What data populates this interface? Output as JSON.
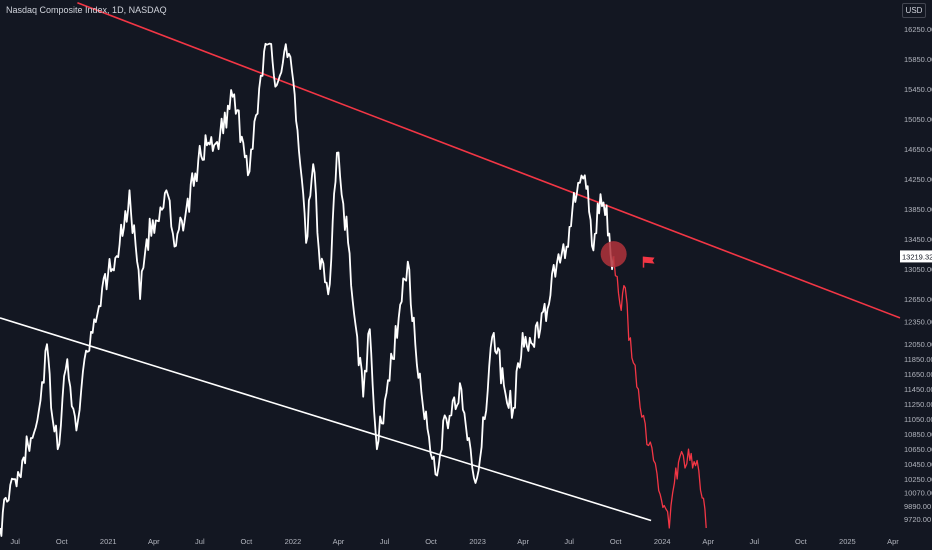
{
  "header": {
    "title": "Nasdaq Composite Index, 1D, NASDAQ",
    "currency": "USD"
  },
  "colors": {
    "background": "#131722",
    "price_line": "#ffffff",
    "projection": "#f23645",
    "upper_trendline": "#f23645",
    "lower_trendline": "#ffffff",
    "marker_circle": "#b2323b",
    "flag": "#f23645",
    "axis_text": "#b2b5be"
  },
  "icons": {
    "flag": "flag-icon",
    "marker": "highlight-circle"
  },
  "chart_data": {
    "type": "line",
    "title": "Nasdaq Composite Index, 1D, NASDAQ",
    "ylabel": "USD",
    "ylim": [
      9600,
      16450
    ],
    "x_range": [
      "2020-06-01",
      "2025-04-15"
    ],
    "grid": false,
    "y_ticks": [
      16250.0,
      15850.0,
      15450.0,
      15050.0,
      14650.0,
      14250.0,
      13850.0,
      13450.0,
      13050.0,
      12650.0,
      12350.0,
      12050.0,
      11850.0,
      11650.0,
      11450.0,
      11250.0,
      11050.0,
      10850.0,
      10650.0,
      10450.0,
      10250.0,
      10070.0,
      9890.0,
      9720.0
    ],
    "y_tick_labels": [
      "16250.00",
      "15850.00",
      "15450.00",
      "15050.00",
      "14650.00",
      "14250.00",
      "13850.00",
      "13450.00",
      "13050.00",
      "12650.00",
      "12350.00",
      "12050.00",
      "11850.00",
      "11650.00",
      "11450.00",
      "11250.00",
      "11050.00",
      "10850.00",
      "10650.00",
      "10450.00",
      "10250.00",
      "10070.00",
      "9890.00",
      "9720.00"
    ],
    "x_ticks": [
      {
        "date": "2020-07-01",
        "label": "Jul"
      },
      {
        "date": "2020-10-01",
        "label": "Oct"
      },
      {
        "date": "2021-01-01",
        "label": "2021"
      },
      {
        "date": "2021-04-01",
        "label": "Apr"
      },
      {
        "date": "2021-07-01",
        "label": "Jul"
      },
      {
        "date": "2021-10-01",
        "label": "Oct"
      },
      {
        "date": "2022-01-01",
        "label": "2022"
      },
      {
        "date": "2022-04-01",
        "label": "Apr"
      },
      {
        "date": "2022-07-01",
        "label": "Jul"
      },
      {
        "date": "2022-10-01",
        "label": "Oct"
      },
      {
        "date": "2023-01-01",
        "label": "2023"
      },
      {
        "date": "2023-04-01",
        "label": "Apr"
      },
      {
        "date": "2023-07-01",
        "label": "Jul"
      },
      {
        "date": "2023-10-01",
        "label": "Oct"
      },
      {
        "date": "2024-01-01",
        "label": "2024"
      },
      {
        "date": "2024-04-01",
        "label": "Apr"
      },
      {
        "date": "2024-07-01",
        "label": "Jul"
      },
      {
        "date": "2024-10-01",
        "label": "Oct"
      },
      {
        "date": "2025-01-01",
        "label": "2025"
      },
      {
        "date": "2025-04-01",
        "label": "Apr"
      }
    ],
    "series": [
      {
        "values": [
          [
            "2020-06-01",
            9600
          ],
          [
            "2020-06-15",
            9950
          ],
          [
            "2020-07-01",
            10250
          ],
          [
            "2020-07-15",
            10500
          ],
          [
            "2020-08-01",
            10800
          ],
          [
            "2020-08-20",
            11300
          ],
          [
            "2020-09-02",
            12050
          ],
          [
            "2020-09-10",
            11200
          ],
          [
            "2020-09-23",
            10650
          ],
          [
            "2020-10-12",
            11850
          ],
          [
            "2020-10-30",
            10900
          ],
          [
            "2020-11-15",
            11850
          ],
          [
            "2020-12-01",
            12200
          ],
          [
            "2020-12-20",
            12800
          ],
          [
            "2021-01-15",
            13200
          ],
          [
            "2021-02-01",
            13600
          ],
          [
            "2021-02-12",
            14100
          ],
          [
            "2021-03-05",
            12650
          ],
          [
            "2021-03-18",
            13450
          ],
          [
            "2021-04-05",
            13700
          ],
          [
            "2021-04-26",
            14100
          ],
          [
            "2021-05-12",
            13350
          ],
          [
            "2021-06-01",
            13700
          ],
          [
            "2021-06-28",
            14500
          ],
          [
            "2021-07-15",
            14700
          ],
          [
            "2021-08-10",
            14850
          ],
          [
            "2021-09-07",
            15380
          ],
          [
            "2021-10-04",
            14300
          ],
          [
            "2021-10-20",
            15100
          ],
          [
            "2021-11-05",
            15950
          ],
          [
            "2021-11-19",
            16050
          ],
          [
            "2021-11-30",
            15500
          ],
          [
            "2021-12-15",
            15950
          ],
          [
            "2021-12-30",
            15700
          ],
          [
            "2022-01-10",
            14900
          ],
          [
            "2022-01-27",
            13400
          ],
          [
            "2022-02-10",
            14450
          ],
          [
            "2022-02-24",
            13050
          ],
          [
            "2022-03-15",
            12850
          ],
          [
            "2022-03-29",
            14600
          ],
          [
            "2022-04-20",
            13400
          ],
          [
            "2022-05-05",
            12300
          ],
          [
            "2022-05-20",
            11350
          ],
          [
            "2022-06-02",
            12250
          ],
          [
            "2022-06-16",
            10650
          ],
          [
            "2022-07-05",
            11400
          ],
          [
            "2022-07-29",
            12400
          ],
          [
            "2022-08-16",
            13150
          ],
          [
            "2022-09-06",
            11600
          ],
          [
            "2022-09-30",
            10600
          ],
          [
            "2022-10-13",
            10300
          ],
          [
            "2022-10-28",
            11100
          ],
          [
            "2022-11-10",
            11100
          ],
          [
            "2022-11-30",
            11450
          ],
          [
            "2022-12-15",
            10800
          ],
          [
            "2022-12-28",
            10200
          ],
          [
            "2023-01-15",
            11050
          ],
          [
            "2023-02-02",
            12200
          ],
          [
            "2023-02-22",
            11500
          ],
          [
            "2023-03-13",
            11200
          ],
          [
            "2023-03-31",
            12200
          ],
          [
            "2023-04-20",
            12050
          ],
          [
            "2023-05-05",
            12250
          ],
          [
            "2023-05-25",
            12700
          ],
          [
            "2023-06-10",
            13250
          ],
          [
            "2023-06-26",
            13350
          ],
          [
            "2023-07-19",
            14200
          ],
          [
            "2023-08-01",
            14300
          ],
          [
            "2023-08-18",
            13300
          ],
          [
            "2023-09-01",
            14050
          ],
          [
            "2023-09-13",
            13900
          ],
          [
            "2023-09-21",
            13250
          ],
          [
            "2023-09-27",
            13219
          ]
        ]
      },
      {
        "values": [
          [
            "2023-09-27",
            13219
          ],
          [
            "2023-10-04",
            12950
          ],
          [
            "2023-10-12",
            12500
          ],
          [
            "2023-10-20",
            12800
          ],
          [
            "2023-10-27",
            12100
          ],
          [
            "2023-11-05",
            11800
          ],
          [
            "2023-11-15",
            11450
          ],
          [
            "2023-11-25",
            11100
          ],
          [
            "2023-12-05",
            10700
          ],
          [
            "2023-12-15",
            10500
          ],
          [
            "2023-12-25",
            10100
          ],
          [
            "2024-01-05",
            9900
          ],
          [
            "2024-01-15",
            9600
          ],
          [
            "2024-01-25",
            10200
          ],
          [
            "2024-02-05",
            10550
          ],
          [
            "2024-02-15",
            10400
          ],
          [
            "2024-02-22",
            10650
          ],
          [
            "2024-03-01",
            10400
          ],
          [
            "2024-03-10",
            10500
          ],
          [
            "2024-03-20",
            10000
          ],
          [
            "2024-03-28",
            9600
          ]
        ]
      }
    ],
    "trendlines": [
      {
        "color": "upper",
        "points": [
          [
            "2020-11-01",
            16600
          ],
          [
            "2025-04-15",
            12400
          ]
        ]
      },
      {
        "color": "lower",
        "points": [
          [
            "2020-06-01",
            12400
          ],
          [
            "2023-12-10",
            9700
          ]
        ]
      }
    ],
    "annotations": [
      {
        "type": "circle",
        "date": "2023-09-27",
        "value": 13250
      },
      {
        "type": "flag",
        "date": "2023-11-25",
        "value": 13150
      }
    ],
    "last_price": {
      "value": 13219.32,
      "label": "13219.32"
    }
  }
}
